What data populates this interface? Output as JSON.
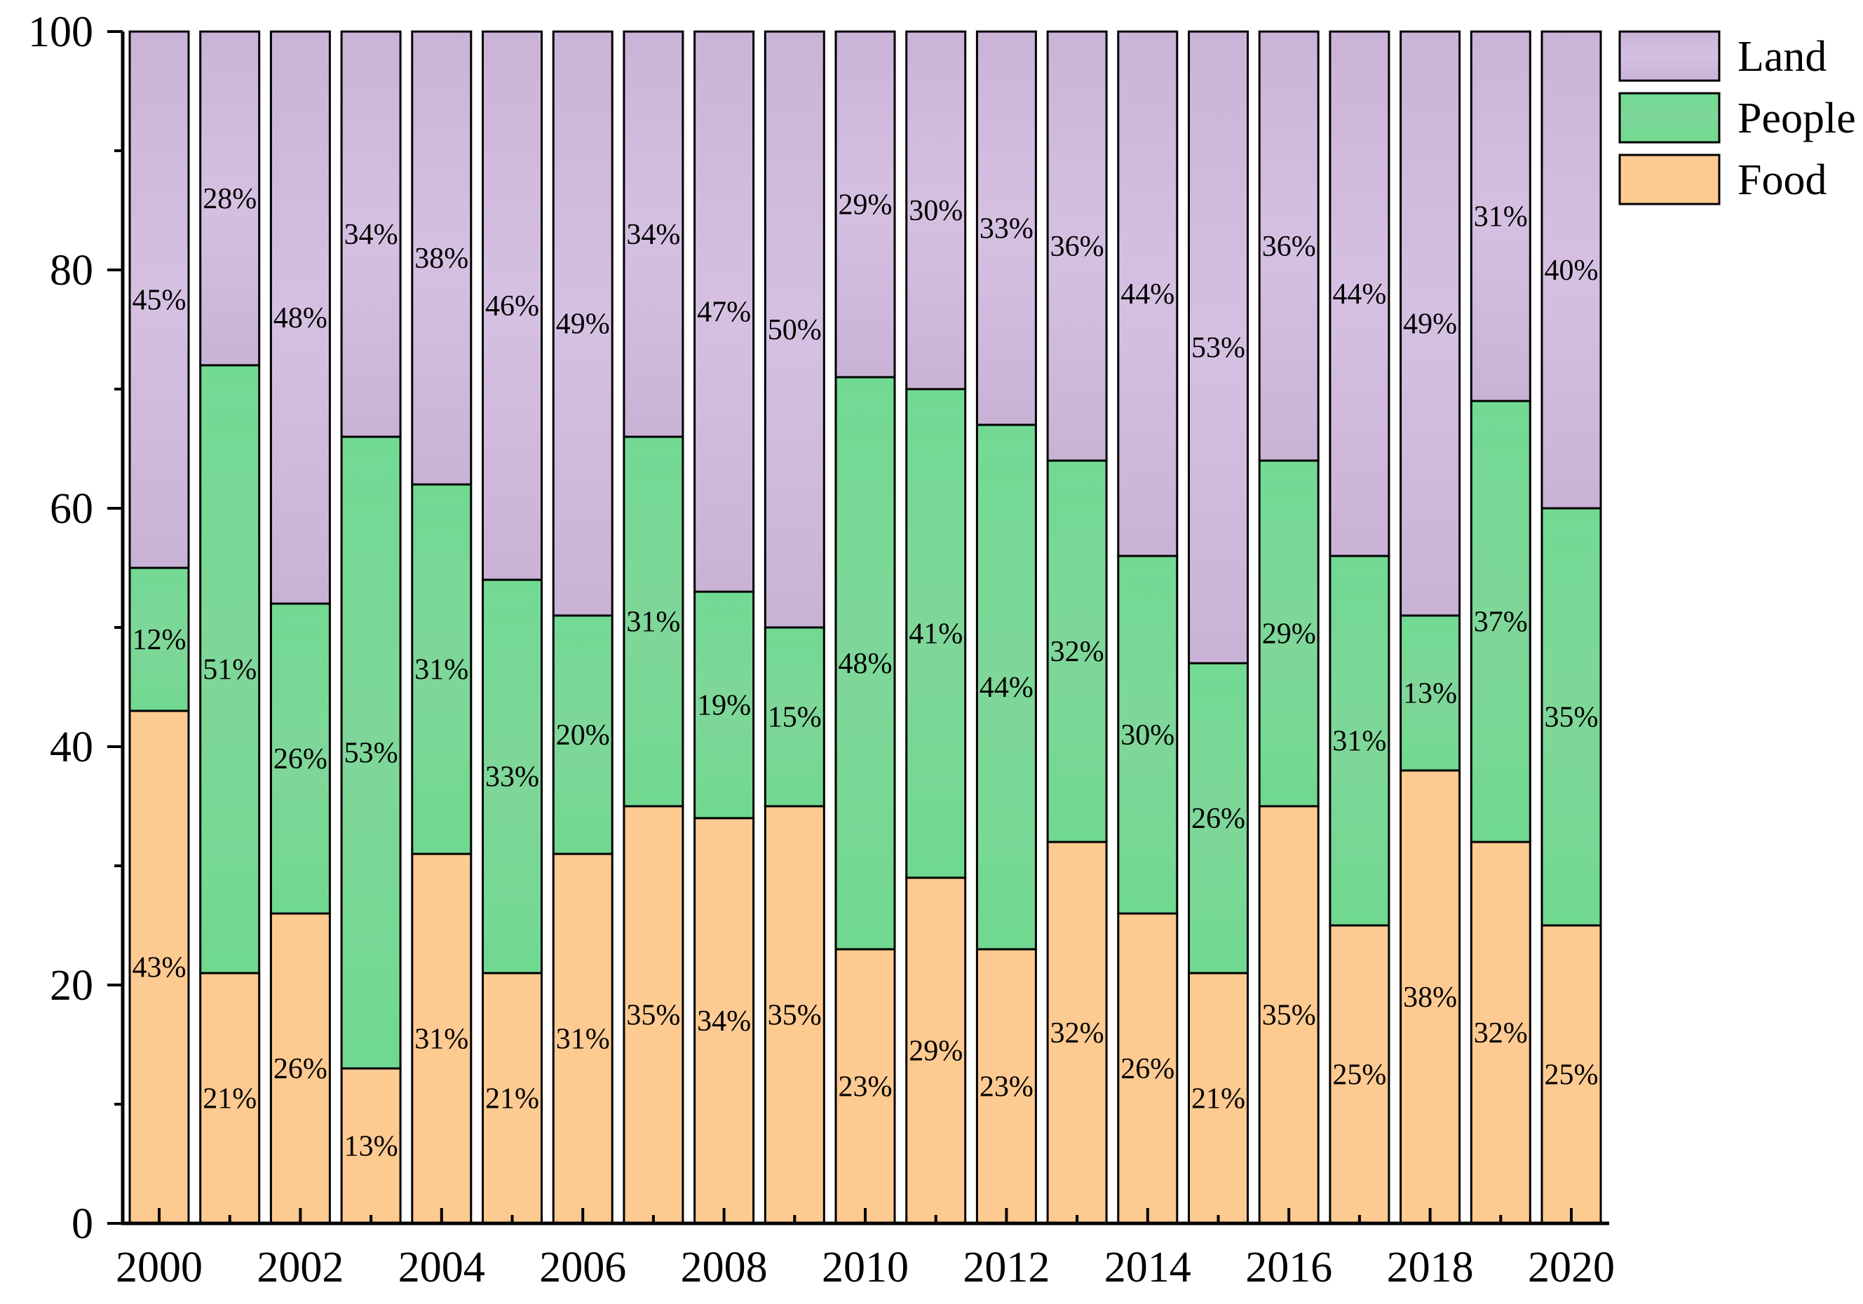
{
  "chart_data": {
    "type": "bar",
    "stacked": true,
    "title": "",
    "xlabel": "",
    "ylabel": "",
    "ylim": [
      0,
      100
    ],
    "yticks": [
      0,
      20,
      40,
      60,
      80,
      100
    ],
    "categories": [
      "2000",
      "2001",
      "2002",
      "2003",
      "2004",
      "2005",
      "2006",
      "2007",
      "2008",
      "2009",
      "2010",
      "2011",
      "2012",
      "2013",
      "2014",
      "2015",
      "2016",
      "2017",
      "2018",
      "2019",
      "2020"
    ],
    "xtick_labels": [
      "2000",
      "",
      "2002",
      "",
      "2004",
      "",
      "2006",
      "",
      "2008",
      "",
      "2010",
      "",
      "2012",
      "",
      "2014",
      "",
      "2016",
      "",
      "2018",
      "",
      "2020"
    ],
    "legend_position": "top-right",
    "series": [
      {
        "name": "Food",
        "color": "#fdca91",
        "values": [
          43,
          21,
          26,
          13,
          31,
          21,
          31,
          35,
          34,
          35,
          23,
          29,
          23,
          32,
          26,
          21,
          35,
          25,
          38,
          32,
          25
        ]
      },
      {
        "name": "People",
        "color": "#7dd696",
        "values": [
          12,
          51,
          26,
          53,
          31,
          33,
          20,
          31,
          19,
          15,
          48,
          41,
          44,
          32,
          30,
          26,
          29,
          31,
          13,
          37,
          35
        ]
      },
      {
        "name": "Land",
        "color": "#ccb4d8",
        "values": [
          45,
          28,
          48,
          34,
          38,
          46,
          49,
          34,
          47,
          50,
          29,
          30,
          33,
          36,
          44,
          53,
          36,
          44,
          49,
          31,
          40
        ]
      }
    ],
    "label_suffix": "%",
    "legend_order": [
      "Land",
      "People",
      "Food"
    ]
  }
}
